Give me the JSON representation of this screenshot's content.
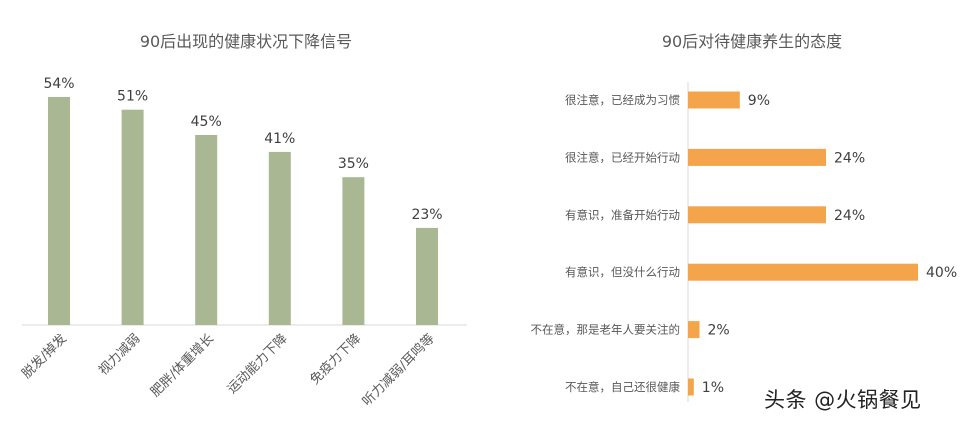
{
  "chart_data": [
    {
      "type": "bar",
      "title": "90后出现的健康状况下降信号",
      "categories": [
        "脱发/掉发",
        "视力减弱",
        "肥胖/体重增长",
        "运动能力下降",
        "免疫力下降",
        "听力减弱/耳鸣等"
      ],
      "values": [
        54,
        51,
        45,
        41,
        35,
        23
      ],
      "value_labels": [
        "54%",
        "51%",
        "45%",
        "41%",
        "35%",
        "23%"
      ],
      "unit": "%",
      "ylim": [
        0,
        60
      ],
      "grid": false,
      "color": "#a9b793"
    },
    {
      "type": "bar",
      "orientation": "horizontal",
      "title": "90后对待健康养生的态度",
      "categories": [
        "很注意，已经成为习惯",
        "很注意，已经开始行动",
        "有意识，准备开始行动",
        "有意识，但没什么行动",
        "不在意，那是老年人要关注的",
        "不在意，自己还很健康"
      ],
      "values": [
        9,
        24,
        24,
        40,
        2,
        1
      ],
      "value_labels": [
        "9%",
        "24%",
        "24%",
        "40%",
        "2%",
        "1%"
      ],
      "unit": "%",
      "xlim": [
        0,
        40
      ],
      "grid": false,
      "color": "#f4a44a"
    }
  ],
  "watermark": "头条 @火锅餐见"
}
